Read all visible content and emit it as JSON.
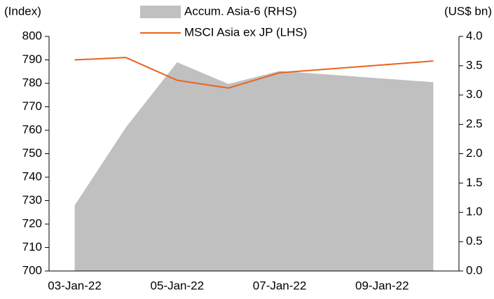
{
  "chart_data": {
    "type": "area-line",
    "y_label": "(Index)",
    "y2_label": "(US$ bn)",
    "x": [
      "2022-01-03",
      "2022-01-04",
      "2022-01-05",
      "2022-01-06",
      "2022-01-07",
      "2022-01-10"
    ],
    "xticks": [
      {
        "value": "2022-01-03",
        "label": "03-Jan-22"
      },
      {
        "value": "2022-01-05",
        "label": "05-Jan-22"
      },
      {
        "value": "2022-01-07",
        "label": "07-Jan-22"
      },
      {
        "value": "2022-01-09",
        "label": "09-Jan-22"
      }
    ],
    "series": [
      {
        "name": "Accum. Asia-6 (RHS)",
        "type": "area",
        "axis": "y2",
        "color": "#c0c0c0",
        "values": [
          1.12,
          2.45,
          3.56,
          3.19,
          3.41,
          3.22
        ]
      },
      {
        "name": "MSCI Asia ex JP (LHS)",
        "type": "line",
        "axis": "y",
        "color": "#e8641e",
        "values": [
          790,
          791,
          781.3,
          778,
          784.5,
          789.5
        ]
      }
    ],
    "ylim": [
      700,
      800
    ],
    "yticks": [
      700,
      710,
      720,
      730,
      740,
      750,
      760,
      770,
      780,
      790,
      800
    ],
    "y2lim": [
      0,
      4
    ],
    "y2ticks": [
      {
        "value": 0,
        "label": "0.0"
      },
      0.5,
      {
        "value": 1,
        "label": "1.0"
      },
      1.5,
      {
        "value": 2,
        "label": "2.0"
      },
      2.5,
      {
        "value": 3,
        "label": "3.0"
      },
      3.5,
      {
        "value": 4,
        "label": "4.0"
      }
    ]
  }
}
